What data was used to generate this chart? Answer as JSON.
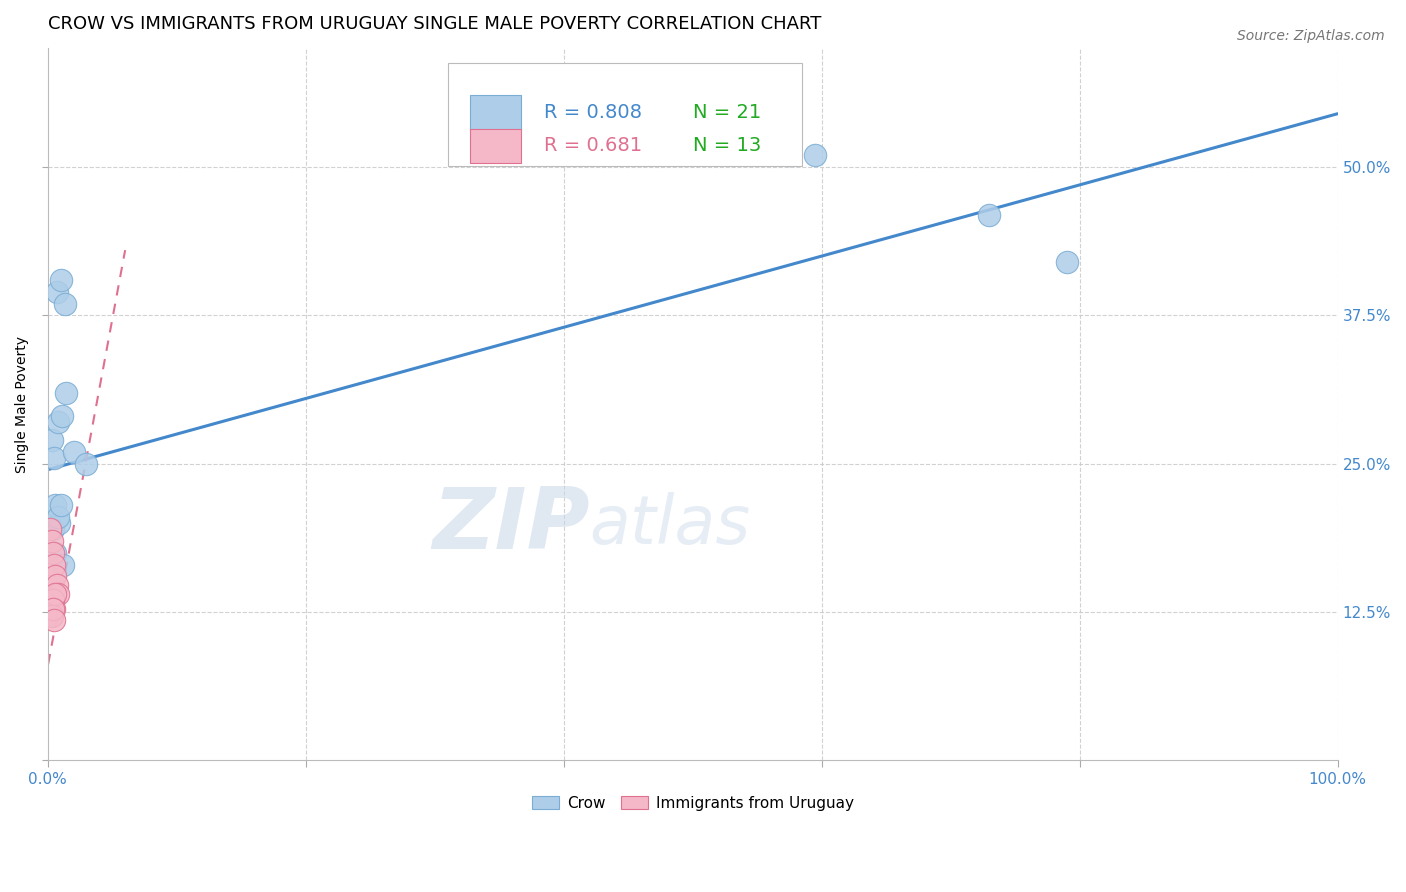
{
  "title": "CROW VS IMMIGRANTS FROM URUGUAY SINGLE MALE POVERTY CORRELATION CHART",
  "source": "Source: ZipAtlas.com",
  "ylabel": "Single Male Poverty",
  "xlim": [
    0.0,
    1.0
  ],
  "ylim": [
    0.0,
    0.6
  ],
  "yticks": [
    0.0,
    0.125,
    0.25,
    0.375,
    0.5
  ],
  "ytick_labels": [
    "",
    "12.5%",
    "25.0%",
    "37.5%",
    "50.0%"
  ],
  "xticks": [
    0.0,
    0.2,
    0.4,
    0.6,
    0.8,
    1.0
  ],
  "xtick_labels": [
    "0.0%",
    "",
    "",
    "",
    "",
    "100.0%"
  ],
  "crow_R": 0.808,
  "crow_N": 21,
  "uruguay_R": 0.681,
  "uruguay_N": 13,
  "crow_color": "#aecde8",
  "crow_edge_color": "#7aadd4",
  "uruguay_color": "#f4b8c8",
  "uruguay_edge_color": "#e07090",
  "blue_line_color": "#4488cc",
  "pink_line_color": "#e07090",
  "background_color": "#ffffff",
  "grid_color": "#cccccc",
  "watermark_zip": "ZIP",
  "watermark_atlas": "atlas",
  "crow_x": [
    0.007,
    0.01,
    0.013,
    0.003,
    0.005,
    0.008,
    0.011,
    0.014,
    0.02,
    0.03,
    0.004,
    0.006,
    0.009,
    0.012,
    0.006,
    0.008,
    0.01,
    0.575,
    0.595,
    0.73,
    0.79
  ],
  "crow_y": [
    0.395,
    0.405,
    0.385,
    0.27,
    0.255,
    0.285,
    0.29,
    0.31,
    0.26,
    0.25,
    0.195,
    0.175,
    0.2,
    0.165,
    0.215,
    0.205,
    0.215,
    0.51,
    0.51,
    0.46,
    0.42
  ],
  "uruguay_x": [
    0.002,
    0.003,
    0.004,
    0.005,
    0.006,
    0.007,
    0.008,
    0.004,
    0.005,
    0.006,
    0.003,
    0.004,
    0.005
  ],
  "uruguay_y": [
    0.195,
    0.185,
    0.175,
    0.165,
    0.155,
    0.148,
    0.14,
    0.135,
    0.128,
    0.14,
    0.122,
    0.128,
    0.118
  ],
  "crow_line_x": [
    0.0,
    1.0
  ],
  "crow_line_y": [
    0.245,
    0.545
  ],
  "uruguay_line_x": [
    -0.005,
    0.06
  ],
  "uruguay_line_y": [
    0.05,
    0.43
  ],
  "legend_R_blue": "#4488cc",
  "legend_N_green": "#22aa22",
  "title_fontsize": 13,
  "label_fontsize": 10,
  "tick_fontsize": 11,
  "source_fontsize": 10
}
